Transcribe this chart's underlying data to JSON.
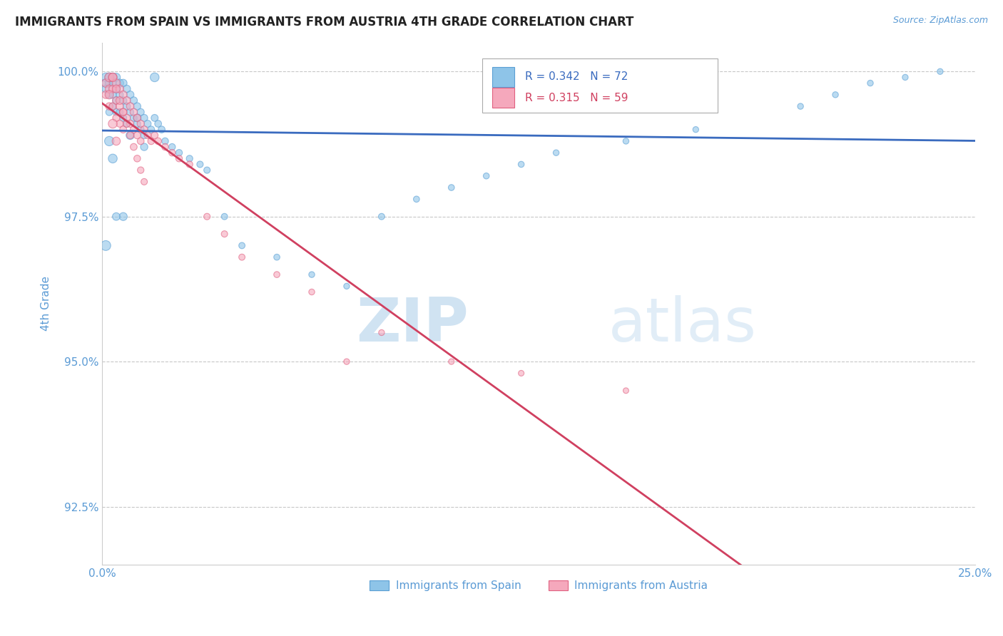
{
  "title": "IMMIGRANTS FROM SPAIN VS IMMIGRANTS FROM AUSTRIA 4TH GRADE CORRELATION CHART",
  "source_text": "Source: ZipAtlas.com",
  "xlabel_ticks": [
    "0.0%",
    "25.0%"
  ],
  "ylabel_label": "4th Grade",
  "ylabel_ticks": [
    "92.5%",
    "95.0%",
    "97.5%",
    "100.0%"
  ],
  "xlim": [
    0.0,
    0.25
  ],
  "ylim": [
    0.915,
    1.005
  ],
  "ytick_vals": [
    0.925,
    0.95,
    0.975,
    1.0
  ],
  "xtick_vals": [
    0.0,
    0.25
  ],
  "watermark_zip": "ZIP",
  "watermark_atlas": "atlas",
  "legend_r_blue": "R = 0.342",
  "legend_n_blue": "N = 72",
  "legend_r_pink": "R = 0.315",
  "legend_n_pink": "N = 59",
  "legend_blue_label": "Immigrants from Spain",
  "legend_pink_label": "Immigrants from Austria",
  "blue_color": "#8ec4e8",
  "pink_color": "#f5a8bc",
  "blue_edge": "#5a9fd4",
  "pink_edge": "#e06080",
  "trendline_blue": "#3a6bbf",
  "trendline_pink": "#d04060",
  "title_color": "#222222",
  "axis_label_color": "#5b9bd5",
  "tick_label_color": "#5b9bd5",
  "grid_color": "#c8c8c8",
  "background_color": "#ffffff",
  "spain_x": [
    0.001,
    0.001,
    0.001,
    0.002,
    0.002,
    0.002,
    0.002,
    0.003,
    0.003,
    0.003,
    0.003,
    0.004,
    0.004,
    0.004,
    0.004,
    0.005,
    0.005,
    0.005,
    0.006,
    0.006,
    0.006,
    0.007,
    0.007,
    0.007,
    0.008,
    0.008,
    0.009,
    0.009,
    0.01,
    0.01,
    0.011,
    0.011,
    0.012,
    0.012,
    0.013,
    0.014,
    0.015,
    0.016,
    0.017,
    0.018,
    0.02,
    0.022,
    0.025,
    0.028,
    0.03,
    0.035,
    0.04,
    0.05,
    0.06,
    0.07,
    0.08,
    0.09,
    0.1,
    0.11,
    0.12,
    0.13,
    0.15,
    0.17,
    0.2,
    0.21,
    0.22,
    0.23,
    0.24,
    0.015,
    0.012,
    0.008,
    0.01,
    0.006,
    0.004,
    0.003,
    0.002,
    0.001
  ],
  "spain_y": [
    0.999,
    0.998,
    0.997,
    0.999,
    0.998,
    0.996,
    0.993,
    0.999,
    0.998,
    0.996,
    0.994,
    0.999,
    0.997,
    0.995,
    0.993,
    0.998,
    0.996,
    0.993,
    0.998,
    0.995,
    0.992,
    0.997,
    0.994,
    0.991,
    0.996,
    0.993,
    0.995,
    0.992,
    0.994,
    0.991,
    0.993,
    0.99,
    0.992,
    0.989,
    0.991,
    0.99,
    0.992,
    0.991,
    0.99,
    0.988,
    0.987,
    0.986,
    0.985,
    0.984,
    0.983,
    0.975,
    0.97,
    0.968,
    0.965,
    0.963,
    0.975,
    0.978,
    0.98,
    0.982,
    0.984,
    0.986,
    0.988,
    0.99,
    0.994,
    0.996,
    0.998,
    0.999,
    1.0,
    0.999,
    0.987,
    0.989,
    0.992,
    0.975,
    0.975,
    0.985,
    0.988,
    0.97
  ],
  "spain_sizes": [
    80,
    70,
    60,
    80,
    65,
    55,
    50,
    75,
    60,
    55,
    50,
    70,
    60,
    55,
    50,
    65,
    55,
    50,
    60,
    55,
    50,
    60,
    55,
    50,
    58,
    52,
    55,
    50,
    55,
    50,
    52,
    48,
    52,
    48,
    50,
    48,
    50,
    48,
    48,
    46,
    45,
    44,
    43,
    42,
    42,
    40,
    40,
    38,
    36,
    35,
    40,
    38,
    38,
    37,
    37,
    36,
    36,
    35,
    36,
    36,
    36,
    35,
    35,
    80,
    55,
    70,
    60,
    65,
    60,
    80,
    90,
    100
  ],
  "austria_x": [
    0.001,
    0.001,
    0.002,
    0.002,
    0.002,
    0.003,
    0.003,
    0.003,
    0.004,
    0.004,
    0.004,
    0.005,
    0.005,
    0.005,
    0.006,
    0.006,
    0.006,
    0.007,
    0.007,
    0.008,
    0.008,
    0.009,
    0.009,
    0.01,
    0.01,
    0.011,
    0.011,
    0.012,
    0.013,
    0.014,
    0.015,
    0.016,
    0.018,
    0.02,
    0.022,
    0.025,
    0.03,
    0.035,
    0.04,
    0.05,
    0.06,
    0.07,
    0.08,
    0.1,
    0.12,
    0.15,
    0.003,
    0.004,
    0.005,
    0.006,
    0.007,
    0.008,
    0.009,
    0.01,
    0.011,
    0.012,
    0.002,
    0.003,
    0.004
  ],
  "austria_y": [
    0.998,
    0.996,
    0.999,
    0.997,
    0.994,
    0.999,
    0.997,
    0.994,
    0.998,
    0.995,
    0.992,
    0.997,
    0.994,
    0.991,
    0.996,
    0.993,
    0.99,
    0.995,
    0.992,
    0.994,
    0.991,
    0.993,
    0.99,
    0.992,
    0.989,
    0.991,
    0.988,
    0.99,
    0.989,
    0.988,
    0.989,
    0.988,
    0.987,
    0.986,
    0.985,
    0.984,
    0.975,
    0.972,
    0.968,
    0.965,
    0.962,
    0.95,
    0.955,
    0.95,
    0.948,
    0.945,
    0.999,
    0.997,
    0.995,
    0.993,
    0.991,
    0.989,
    0.987,
    0.985,
    0.983,
    0.981,
    0.996,
    0.991,
    0.988
  ],
  "austria_sizes": [
    70,
    60,
    80,
    65,
    55,
    75,
    62,
    55,
    70,
    58,
    52,
    65,
    55,
    50,
    62,
    55,
    50,
    60,
    54,
    58,
    52,
    55,
    50,
    55,
    50,
    52,
    48,
    50,
    48,
    47,
    48,
    47,
    46,
    45,
    44,
    43,
    42,
    41,
    40,
    38,
    36,
    35,
    35,
    34,
    33,
    32,
    70,
    65,
    60,
    55,
    52,
    50,
    48,
    46,
    44,
    42,
    75,
    80,
    68
  ]
}
